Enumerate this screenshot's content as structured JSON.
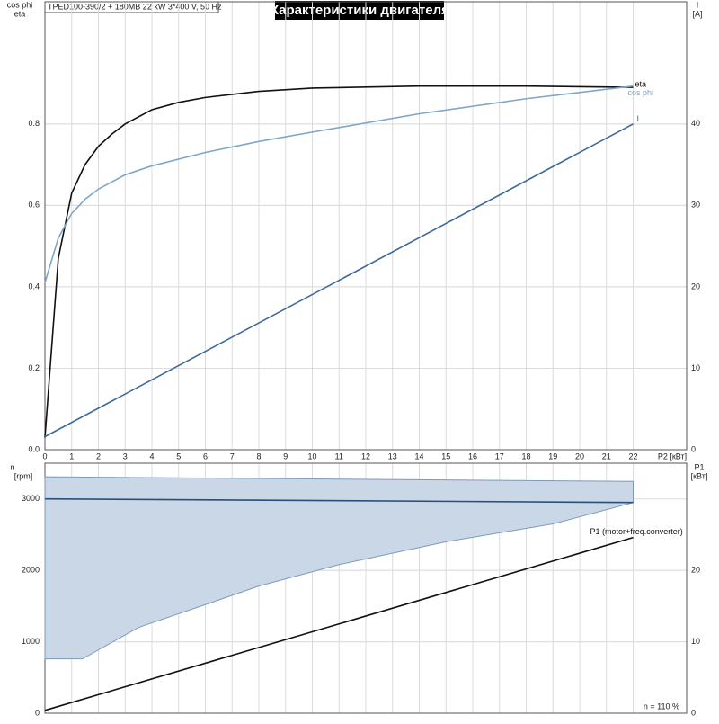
{
  "chart_data": [
    {
      "type": "line",
      "header": "TPED100-390/2 + 180MB  22 kW  3*400 V, 50 Hz",
      "title": "Характеристики двигателя",
      "y_label": [
        "cos phi",
        "eta"
      ],
      "y2_label": [
        "I",
        "[A]"
      ],
      "x_label": "P2 [кВт]",
      "xlim": [
        0,
        24
      ],
      "xticks": [
        0,
        1,
        2,
        3,
        4,
        5,
        6,
        7,
        8,
        9,
        10,
        11,
        12,
        13,
        14,
        15,
        16,
        17,
        18,
        19,
        20,
        21,
        22
      ],
      "ylim": [
        0,
        1.1
      ],
      "yticks": [
        {
          "value": 0,
          "label": "0.0"
        },
        0.2,
        0.4,
        0.6,
        0.8
      ],
      "y2lim": [
        0,
        55
      ],
      "y2ticks": [
        0,
        10,
        20,
        30,
        40
      ],
      "grid": true,
      "series": [
        {
          "name": "eta",
          "color": "#111111",
          "x": [
            0,
            0.5,
            1,
            1.5,
            2,
            2.5,
            3,
            4,
            5,
            6,
            8,
            10,
            14,
            18,
            22
          ],
          "values": [
            0.03,
            0.47,
            0.63,
            0.7,
            0.745,
            0.775,
            0.8,
            0.835,
            0.853,
            0.865,
            0.88,
            0.888,
            0.893,
            0.893,
            0.89
          ]
        },
        {
          "name": "cos phi",
          "color": "#7fa6c9",
          "x": [
            0,
            0.5,
            1,
            1.5,
            2,
            3,
            4,
            6,
            8,
            10,
            14,
            18,
            22
          ],
          "values": [
            0.41,
            0.52,
            0.58,
            0.615,
            0.64,
            0.675,
            0.697,
            0.73,
            0.757,
            0.78,
            0.825,
            0.862,
            0.893
          ]
        },
        {
          "name": "I",
          "color": "#3d6a9a",
          "axis": "y2",
          "x": [
            0,
            22
          ],
          "values": [
            1.6,
            40
          ]
        }
      ]
    },
    {
      "type": "line",
      "y_label": [
        "n",
        "[rpm]"
      ],
      "y2_label": [
        "P1",
        "[кВт]"
      ],
      "annotation": "n = 110 %",
      "xlim": [
        0,
        24
      ],
      "xticks": [
        0,
        1,
        2,
        3,
        4,
        5,
        6,
        7,
        8,
        9,
        10,
        11,
        12,
        13,
        14,
        15,
        16,
        17,
        18,
        19,
        20,
        21,
        22
      ],
      "ylim": [
        0,
        3500
      ],
      "yticks": [
        0,
        1000,
        2000,
        3000
      ],
      "y2lim": [
        0,
        35
      ],
      "y2ticks": [
        0,
        10,
        20
      ],
      "grid": true,
      "band": {
        "color": "#c9d7e6",
        "upper": {
          "x": [
            0,
            22
          ],
          "values": [
            3310,
            3245
          ]
        },
        "lower": {
          "x": [
            0,
            1.4,
            3.5,
            6,
            8,
            11,
            15,
            19,
            22
          ],
          "values": [
            760,
            760,
            1200,
            1520,
            1780,
            2080,
            2400,
            2650,
            2950
          ]
        }
      },
      "series": [
        {
          "color": "#2a4f7c",
          "x": [
            0,
            22
          ],
          "values": [
            3000,
            2950
          ]
        },
        {
          "name": "P1 (motor+freq.converter)",
          "color": "#111111",
          "axis": "y2",
          "x": [
            0,
            22
          ],
          "values": [
            0.4,
            24.6
          ]
        }
      ]
    }
  ]
}
